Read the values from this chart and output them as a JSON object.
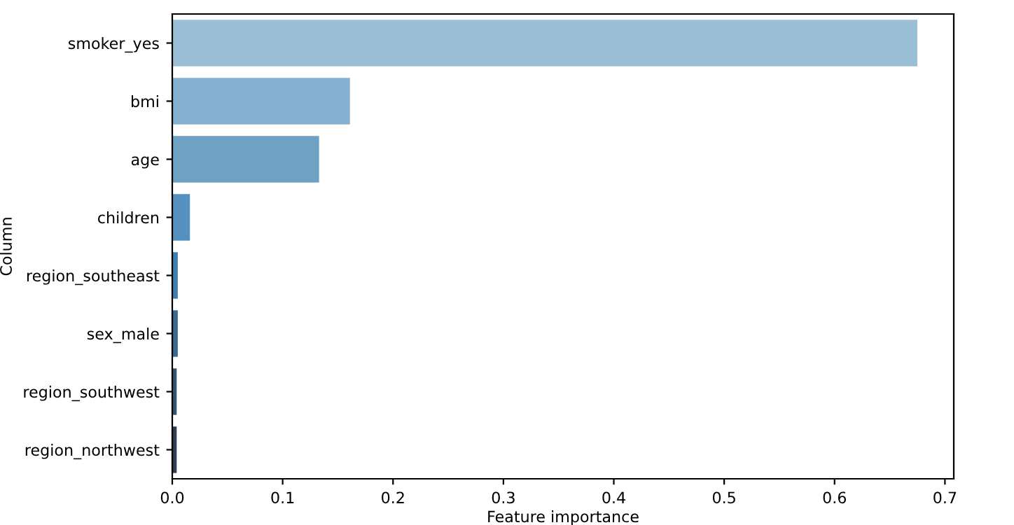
{
  "chart_data": {
    "type": "bar",
    "orientation": "horizontal",
    "xlabel": "Feature importance",
    "ylabel": "Column",
    "categories": [
      "smoker_yes",
      "bmi",
      "age",
      "children",
      "region_southeast",
      "sex_male",
      "region_southwest",
      "region_northwest"
    ],
    "values": [
      0.675,
      0.161,
      0.133,
      0.016,
      0.005,
      0.005,
      0.004,
      0.004
    ],
    "colors": [
      "#9bbfd7",
      "#86b0cf",
      "#6fa1c5",
      "#5591bf",
      "#3f7fb0",
      "#3b6a90",
      "#34536f",
      "#2d3f50"
    ],
    "xlim": [
      0,
      0.708
    ],
    "xticks": [
      {
        "value": 0,
        "label": "0.0"
      },
      0.1,
      0.2,
      0.3,
      0.4,
      0.5,
      0.6,
      0.7
    ],
    "grid": false
  }
}
